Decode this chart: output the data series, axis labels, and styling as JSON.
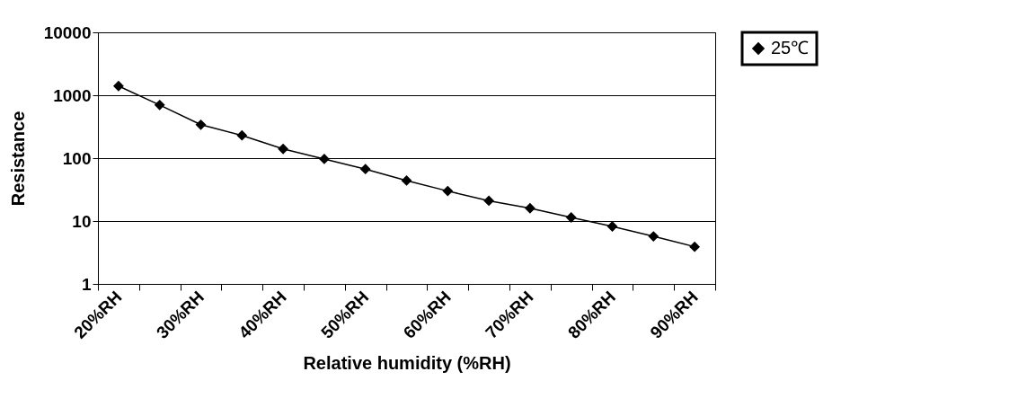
{
  "chart_data": {
    "type": "line",
    "xlabel": "Relative humidity (%RH)",
    "ylabel": "Resistance",
    "categories": [
      "20%RH",
      null,
      "30%RH",
      null,
      "40%RH",
      null,
      "50%RH",
      null,
      "60%RH",
      null,
      "70%RH",
      null,
      "80%RH",
      null,
      "90%RH"
    ],
    "series": [
      {
        "name": "25℃",
        "color": "#000000",
        "values": [
          1400,
          700,
          340,
          230,
          140,
          97,
          67,
          44,
          30,
          21,
          16,
          11.4,
          8.2,
          5.7,
          3.9
        ]
      }
    ],
    "ylim": [
      1,
      10000
    ],
    "yticks": [
      1,
      10,
      100,
      1000,
      10000
    ],
    "log": true,
    "grid": "y",
    "legend": "right",
    "marker": "diamond",
    "line_style": "solid"
  }
}
